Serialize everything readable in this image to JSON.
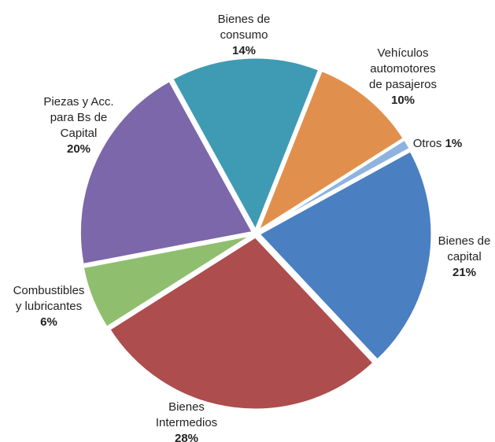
{
  "chart_data": {
    "type": "pie",
    "categories": [
      [
        "Bienes de",
        "consumo"
      ],
      [
        "Vehículos",
        "automotores",
        "de pasajeros"
      ],
      [
        "Otros"
      ],
      [
        "Bienes de",
        "capital"
      ],
      [
        "Bienes",
        "Intermedios"
      ],
      [
        "Combustibles",
        "y lubricantes"
      ],
      [
        "Piezas y Acc.",
        "para Bs de",
        "Capital"
      ]
    ],
    "values": [
      14,
      10,
      1,
      21,
      28,
      6,
      20
    ],
    "value_labels": [
      "14%",
      "10%",
      "1%",
      "21%",
      "28%",
      "6%",
      "20%"
    ],
    "colors": [
      "#3f9bb3",
      "#e0904c",
      "#8fb3e0",
      "#4a7fc1",
      "#ad4d4e",
      "#8fbf6e",
      "#7b67a9"
    ]
  }
}
